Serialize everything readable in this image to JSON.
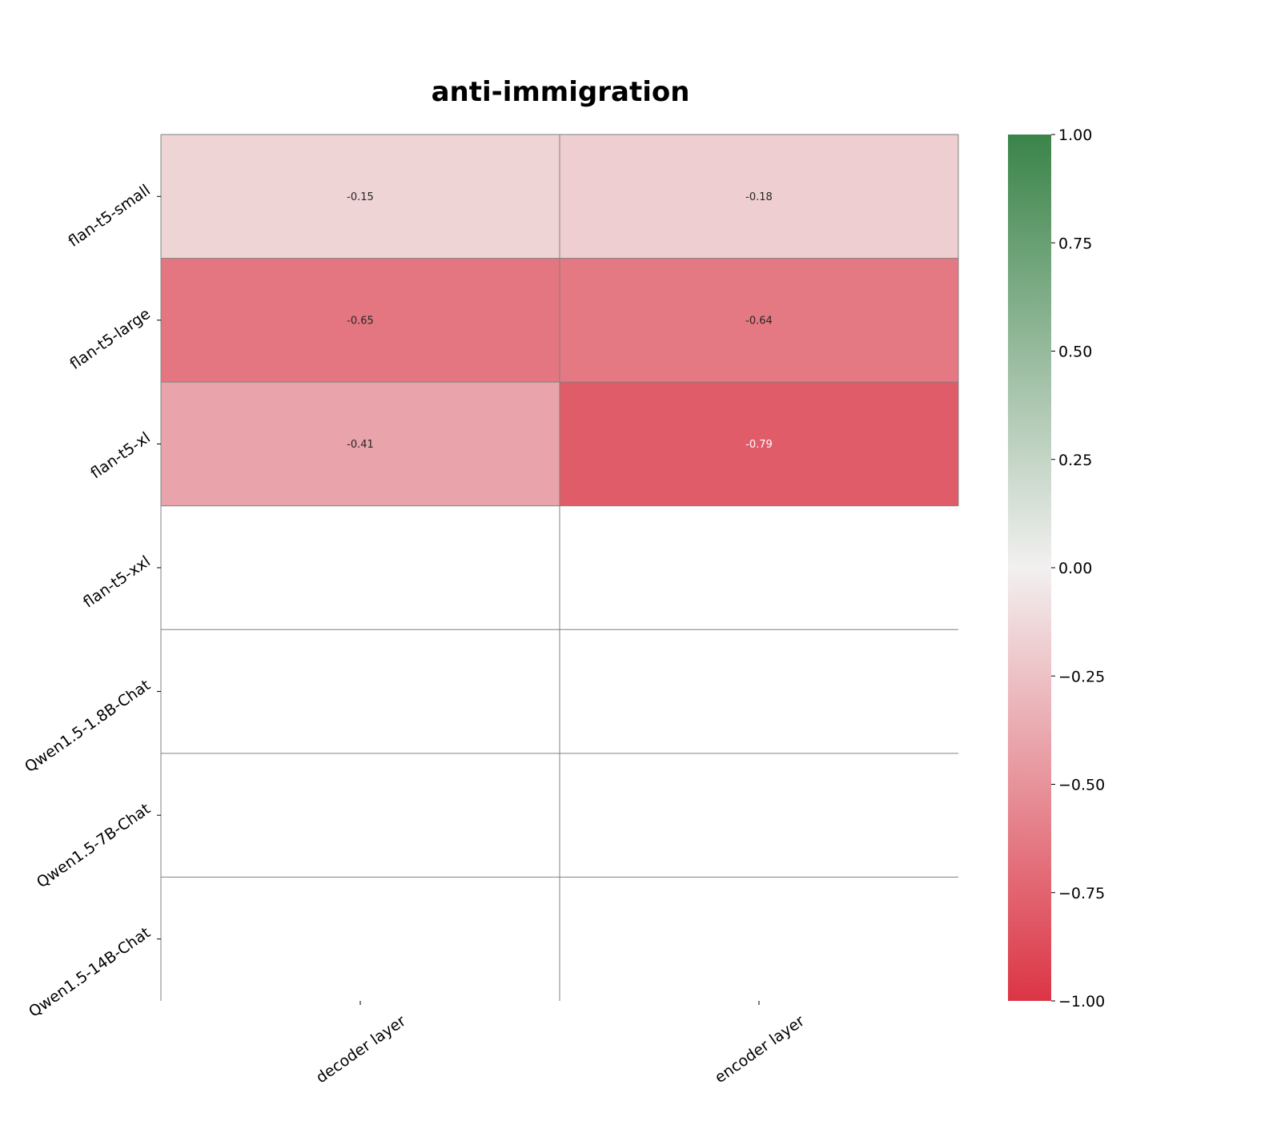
{
  "chart_data": {
    "type": "heatmap",
    "title": "anti-immigration",
    "xlabel": "",
    "ylabel": "",
    "columns": [
      "decoder layer",
      "encoder layer"
    ],
    "rows": [
      "flan-t5-small",
      "flan-t5-large",
      "flan-t5-xl",
      "flan-t5-xxl",
      "Qwen1.5-1.8B-Chat",
      "Qwen1.5-7B-Chat",
      "Qwen1.5-14B-Chat"
    ],
    "values": [
      [
        -0.15,
        -0.18
      ],
      [
        -0.65,
        -0.64
      ],
      [
        -0.41,
        -0.79
      ],
      [
        null,
        null
      ],
      [
        null,
        null
      ],
      [
        null,
        null
      ],
      [
        null,
        null
      ]
    ],
    "cell_labels": [
      [
        "-0.15",
        "-0.18"
      ],
      [
        "-0.65",
        "-0.64"
      ],
      [
        "-0.41",
        "-0.79"
      ],
      [
        "",
        ""
      ],
      [
        "",
        ""
      ],
      [
        "",
        ""
      ],
      [
        "",
        ""
      ]
    ],
    "colorbar": {
      "vmin": -1.0,
      "vmax": 1.0,
      "ticks": [
        "1.00",
        "0.75",
        "0.50",
        "0.25",
        "0.00",
        "−0.25",
        "−0.50",
        "−0.75",
        "−1.00"
      ],
      "tick_values": [
        1.0,
        0.75,
        0.5,
        0.25,
        0.0,
        -0.25,
        -0.5,
        -0.75,
        -1.0
      ],
      "colors": {
        "min": "#dc3545",
        "mid": "#f2f0f0",
        "max": "#3a8449"
      }
    },
    "grid_color": "#808080"
  }
}
